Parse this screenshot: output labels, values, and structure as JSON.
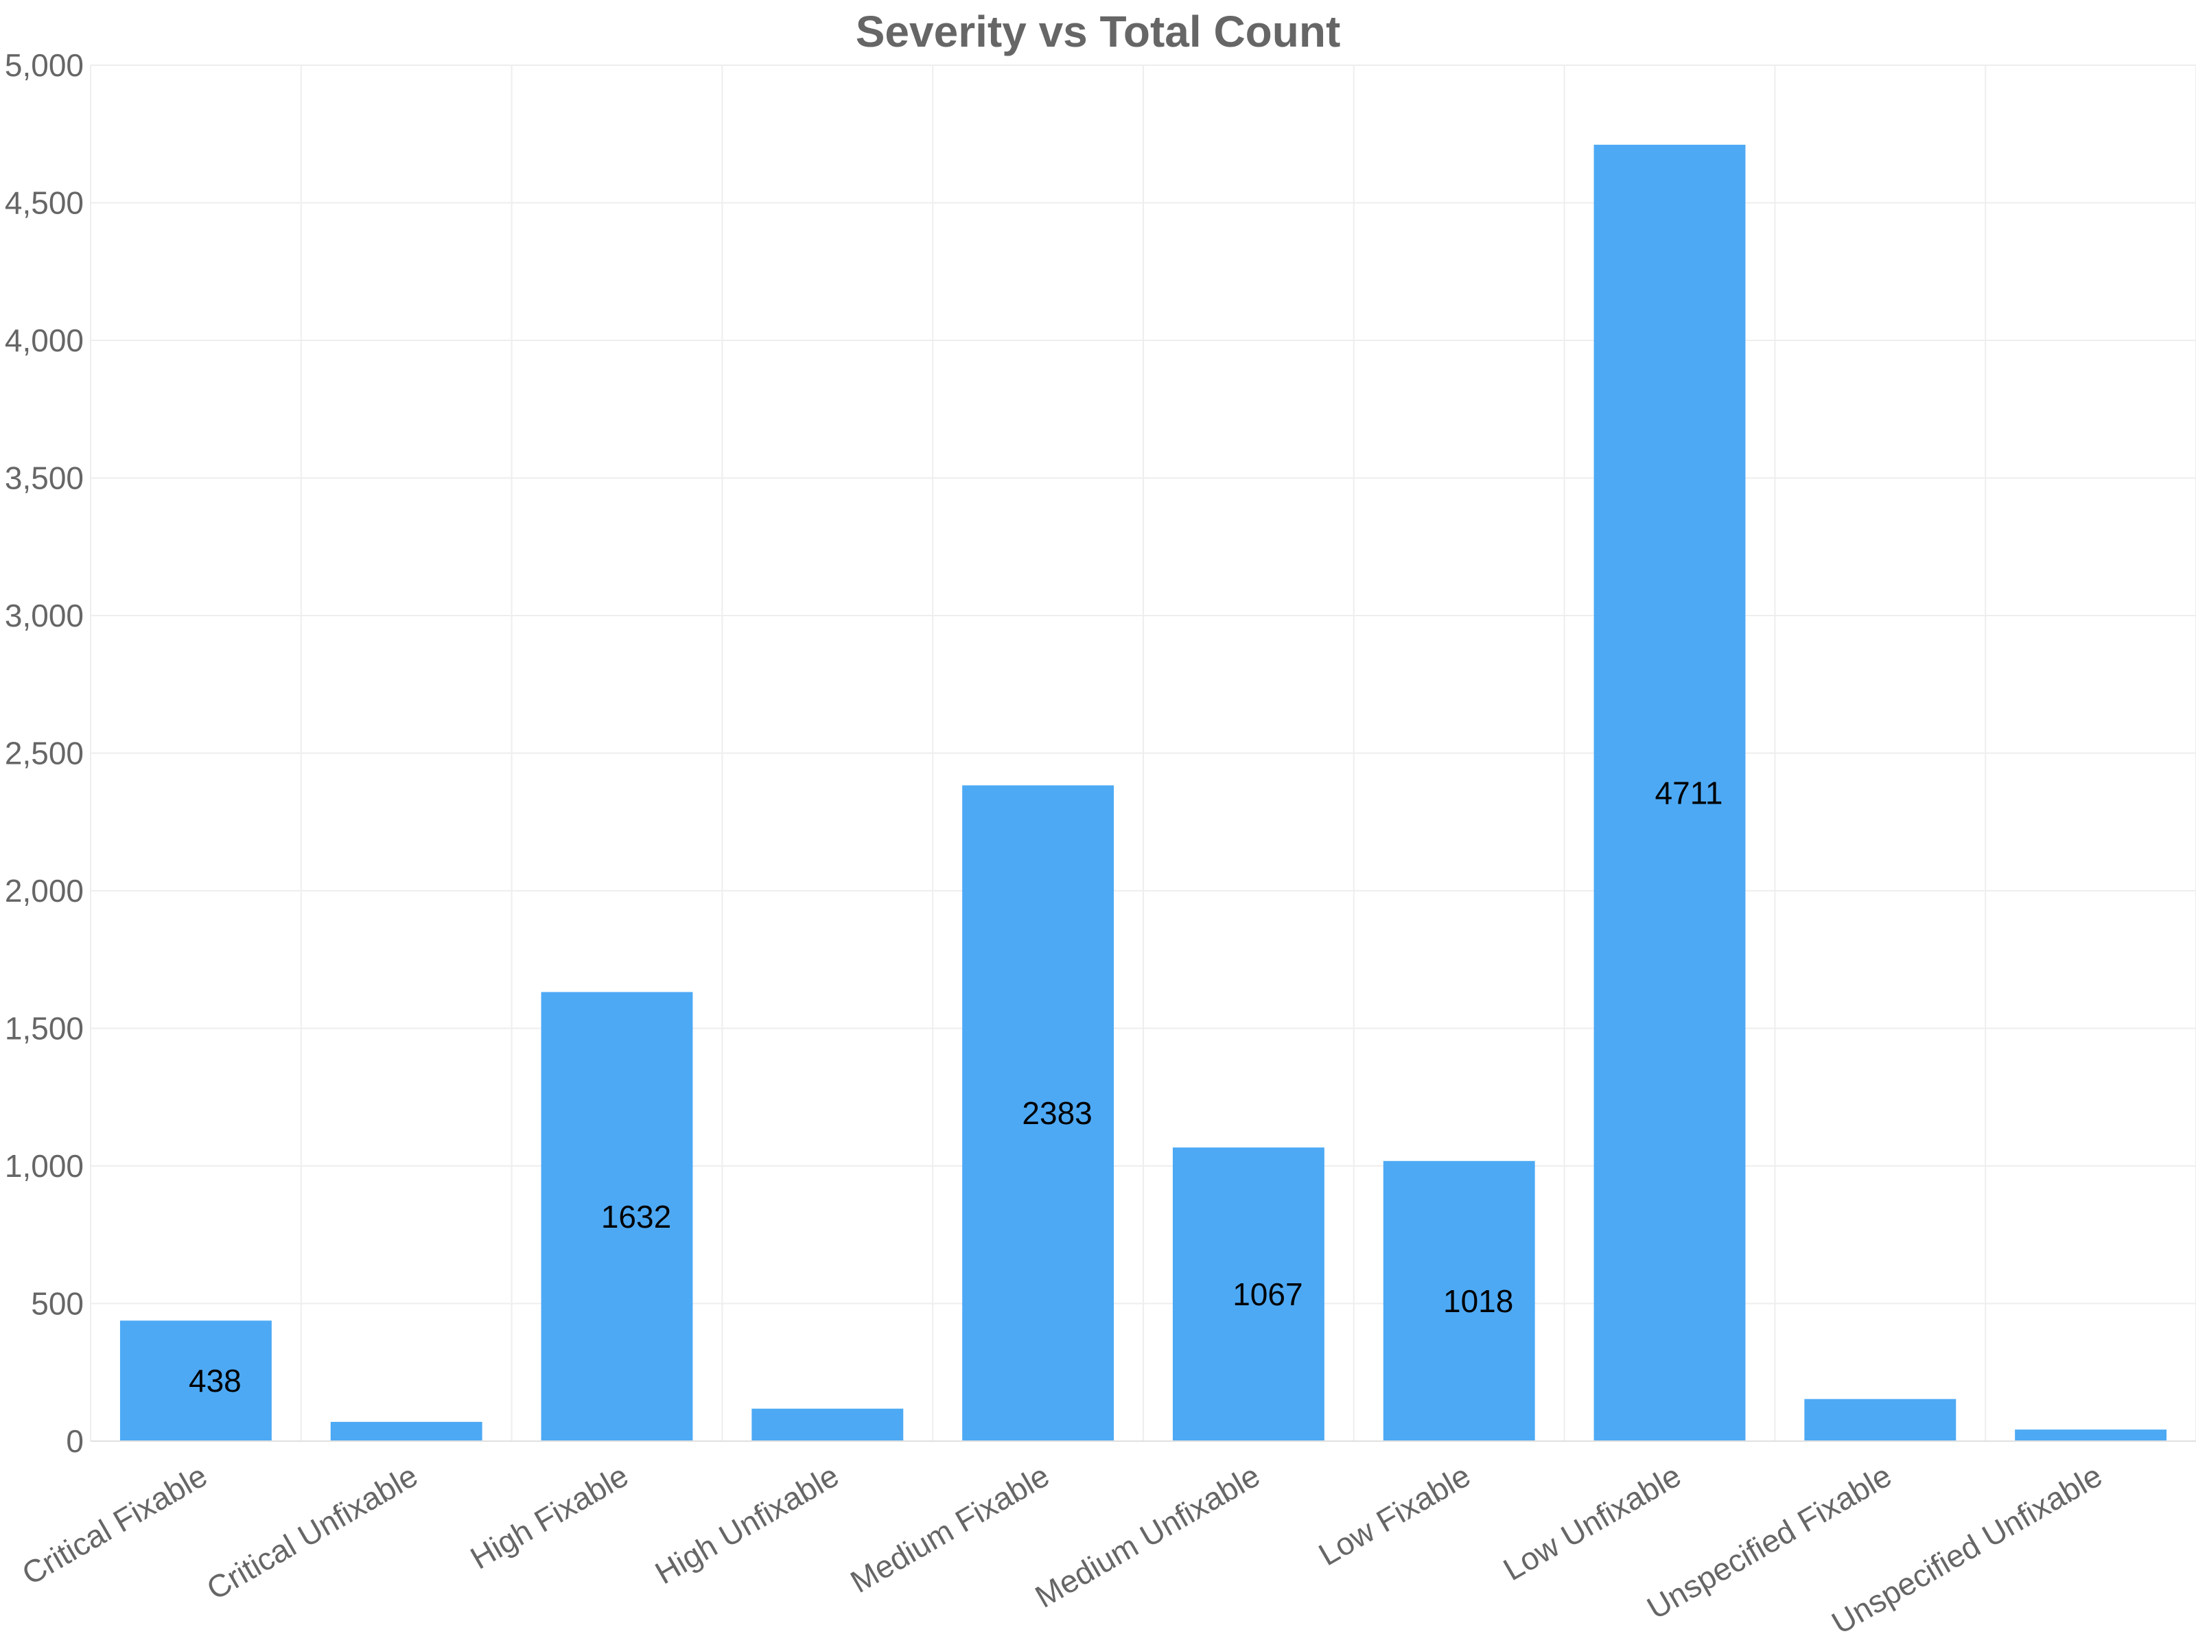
{
  "chart_data": {
    "type": "bar",
    "title": "Severity vs Total Count",
    "xlabel": "",
    "ylabel": "",
    "categories": [
      "Critical Fixable",
      "Critical Unfixable",
      "High Fixable",
      "High Unfixable",
      "Medium Fixable",
      "Medium Unfixable",
      "Low Fixable",
      "Low Unfixable",
      "Unspecified Fixable",
      "Unspecified Unfixable"
    ],
    "values": [
      438,
      70,
      1632,
      118,
      2383,
      1067,
      1018,
      4711,
      153,
      42
    ],
    "data_labels": [
      "438",
      "",
      "1632",
      "",
      "2383",
      "1067",
      "1018",
      "4711",
      "",
      ""
    ],
    "ylim": [
      0,
      5000
    ],
    "y_ticks": [
      0,
      500,
      1000,
      1500,
      2000,
      2500,
      3000,
      3500,
      4000,
      4500,
      5000
    ],
    "y_tick_labels": [
      "0",
      "500",
      "1,000",
      "1,500",
      "2,000",
      "2,500",
      "3,000",
      "3,500",
      "4,000",
      "4,500",
      "5,000"
    ],
    "grid": true,
    "legend": "none",
    "bar_color": "#4da9f4"
  }
}
